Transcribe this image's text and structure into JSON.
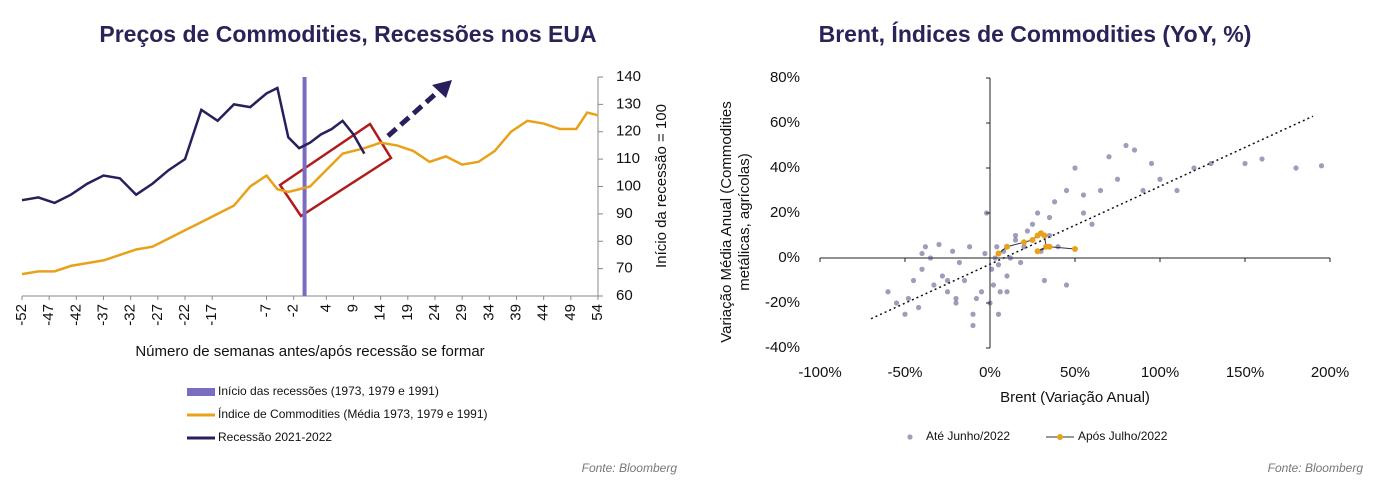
{
  "charts": [
    {
      "chart_data": {
        "type": "line",
        "title": "Preços de Commodities, Recessões nos EUA",
        "xlabel": "Número de semanas antes/após recessão se formar",
        "ylabel": "Início da recessão = 100",
        "x": [
          -52,
          -49,
          -46,
          -43,
          -40,
          -37,
          -34,
          -31,
          -28,
          -25,
          -22,
          -19,
          -16,
          -13,
          -10,
          -7,
          -5,
          -3,
          -1,
          1,
          3,
          5,
          7,
          9,
          11,
          14,
          17,
          20,
          23,
          26,
          29,
          32,
          35,
          38,
          41,
          44,
          47,
          50,
          52,
          54
        ],
        "series": [
          {
            "name": "Índice de Commodities (Média 1973, 1979 e 1991)",
            "color": "#e8a21a",
            "values": [
              68,
              69,
              69,
              71,
              72,
              73,
              75,
              77,
              78,
              81,
              84,
              87,
              90,
              93,
              100,
              104,
              99,
              98,
              99,
              100,
              104,
              108,
              112,
              113,
              114,
              116,
              115,
              113,
              109,
              111,
              108,
              109,
              113,
              120,
              124,
              123,
              121,
              121,
              127,
              126
            ]
          },
          {
            "name": "Recessão 2021-2022",
            "color": "#2a1f5c",
            "values": [
              95,
              96,
              94,
              97,
              101,
              104,
              103,
              97,
              101,
              106,
              110,
              128,
              124,
              130,
              129,
              134,
              136,
              118,
              114,
              116,
              119,
              121,
              124,
              119,
              112,
              null,
              null,
              null,
              null,
              null,
              null,
              null,
              null,
              null,
              null,
              null,
              null,
              null,
              null,
              null
            ]
          }
        ],
        "vline": {
          "name": "Início das recessões (1973, 1979 e 1991)",
          "x": 0,
          "color": "#7b6cc0"
        },
        "xlim": [
          -52,
          54
        ],
        "xticks": [
          -52,
          -47,
          -42,
          -37,
          -32,
          -27,
          -22,
          -17,
          -7,
          -2,
          4,
          9,
          14,
          19,
          24,
          29,
          34,
          39,
          44,
          49,
          54
        ],
        "ylim": [
          60,
          140
        ],
        "yticks": [
          60,
          70,
          80,
          90,
          100,
          110,
          120,
          130,
          140
        ],
        "source": "Fonte: Bloomberg"
      }
    },
    {
      "chart_data": {
        "type": "scatter",
        "title": "Brent, Índices de Commodities (YoY, %)",
        "xlabel": "Brent (Variação Anual)",
        "ylabel": "Variação Média Anual (Commodities metálicas, agrícolas)",
        "series": [
          {
            "name": "Até Junho/2022",
            "color": "#46377a",
            "x": [
              -60,
              -55,
              -50,
              -48,
              -45,
              -42,
              -40,
              -38,
              -35,
              -33,
              -30,
              -28,
              -25,
              -22,
              -20,
              -18,
              -15,
              -12,
              -10,
              -8,
              -5,
              -3,
              -2,
              0,
              1,
              2,
              3,
              4,
              5,
              6,
              8,
              10,
              12,
              15,
              18,
              20,
              22,
              25,
              28,
              30,
              32,
              35,
              38,
              40,
              45,
              50,
              55,
              60,
              65,
              70,
              75,
              80,
              85,
              90,
              95,
              100,
              110,
              120,
              130,
              150,
              160,
              180,
              195,
              -25,
              -10,
              5,
              15,
              -40,
              -20,
              10,
              35,
              45,
              55
            ],
            "y": [
              -15,
              -20,
              -25,
              -18,
              -10,
              -22,
              -5,
              5,
              0,
              -12,
              6,
              -8,
              -15,
              3,
              -20,
              -2,
              -10,
              5,
              -25,
              -18,
              -15,
              2,
              20,
              -20,
              -5,
              -12,
              0,
              5,
              -3,
              -15,
              3,
              -8,
              0,
              8,
              -2,
              5,
              12,
              15,
              20,
              3,
              -10,
              10,
              25,
              5,
              30,
              40,
              20,
              15,
              30,
              45,
              35,
              50,
              48,
              30,
              42,
              35,
              30,
              40,
              42,
              42,
              44,
              40,
              41,
              -10,
              -30,
              -25,
              10,
              2,
              -18,
              -15,
              18,
              -12,
              28
            ]
          },
          {
            "name": "Após Julho/2022",
            "color": "#e8a21a",
            "x": [
              5,
              10,
              20,
              25,
              28,
              30,
              32,
              33,
              28,
              35,
              50
            ],
            "y": [
              2,
              5,
              7,
              8,
              10,
              11,
              10,
              5,
              3,
              5,
              4
            ]
          }
        ],
        "trendline": {
          "x": [
            -70,
            190
          ],
          "y": [
            -27,
            63
          ]
        },
        "xlim": [
          -100,
          200
        ],
        "xticks": [
          {
            "value": -100,
            "label": "-100%"
          },
          {
            "value": -50,
            "label": "-50%"
          },
          {
            "value": 0,
            "label": "0%"
          },
          {
            "value": 50,
            "label": "50%"
          },
          {
            "value": 100,
            "label": "100%"
          },
          {
            "value": 150,
            "label": "150%"
          },
          {
            "value": 200,
            "label": "200%"
          }
        ],
        "ylim": [
          -40,
          80
        ],
        "yticks": [
          {
            "value": -40,
            "label": "-40%"
          },
          {
            "value": -20,
            "label": "-20%"
          },
          {
            "value": 0,
            "label": "0%"
          },
          {
            "value": 20,
            "label": "20%"
          },
          {
            "value": 40,
            "label": "40%"
          },
          {
            "value": 60,
            "label": "60%"
          },
          {
            "value": 80,
            "label": "80%"
          }
        ],
        "source": "Fonte: Bloomberg"
      }
    }
  ]
}
